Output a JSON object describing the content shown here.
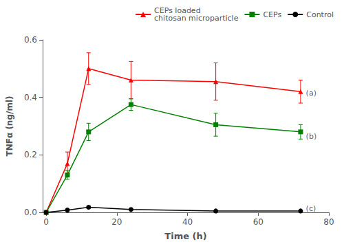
{
  "chart_data": {
    "type": "line",
    "xlabel": "Time (h)",
    "ylabel": "TNFα (ng/ml)",
    "xlim": [
      -1,
      80
    ],
    "ylim": [
      0,
      0.6
    ],
    "xticks": [
      0,
      20,
      40,
      60,
      80
    ],
    "yticks": [
      {
        "value": 0,
        "label": "0.0"
      },
      0.2,
      0.4,
      0.6
    ],
    "grid": false,
    "legend": "upper right",
    "series": [
      {
        "name": "CEPs loaded\nchitosan microparticle",
        "color": "#ff0000",
        "marker": "triangle",
        "x": [
          0,
          6,
          12,
          24,
          48,
          72
        ],
        "values": [
          0.0,
          0.17,
          0.5,
          0.46,
          0.455,
          0.42
        ],
        "yerr": [
          0.0,
          0.04,
          0.055,
          0.065,
          0.065,
          0.04
        ]
      },
      {
        "name": "CEPs",
        "color": "#008000",
        "marker": "square",
        "x": [
          0,
          6,
          12,
          24,
          48,
          72
        ],
        "values": [
          0.0,
          0.13,
          0.28,
          0.375,
          0.305,
          0.28
        ],
        "yerr": [
          0.0,
          0.015,
          0.03,
          0.02,
          0.04,
          0.025
        ]
      },
      {
        "name": "Control",
        "color": "#000000",
        "marker": "circle",
        "x": [
          0,
          6,
          12,
          24,
          48,
          72
        ],
        "values": [
          0.0,
          0.008,
          0.018,
          0.01,
          0.005,
          0.005
        ],
        "yerr": [
          0.0,
          0.002,
          0.004,
          0.002,
          0.001,
          0.001
        ]
      }
    ],
    "annotations": [
      {
        "text": "(a)",
        "x": 73.5,
        "y": 0.415
      },
      {
        "text": "(b)",
        "x": 73.5,
        "y": 0.265
      },
      {
        "text": "(c)",
        "x": 73.5,
        "y": 0.014
      }
    ]
  }
}
